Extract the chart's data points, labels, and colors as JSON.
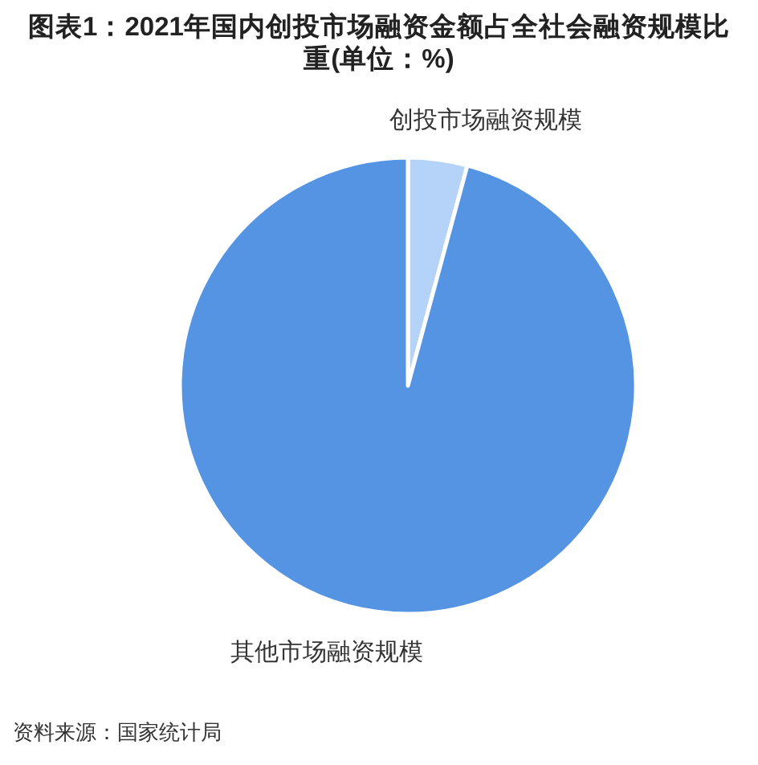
{
  "chart_data": {
    "type": "pie",
    "title": "图表1：2021年国内创投市场融资金额占全社会融资规模比重(单位：%)",
    "categories": [
      "创投市场融资规模",
      "其他市场融资规模"
    ],
    "values": [
      4.2,
      95.8
    ],
    "colors": [
      "#b5d3f8",
      "#5593e3"
    ],
    "annotations": [
      "资料来源：国家统计局"
    ]
  }
}
